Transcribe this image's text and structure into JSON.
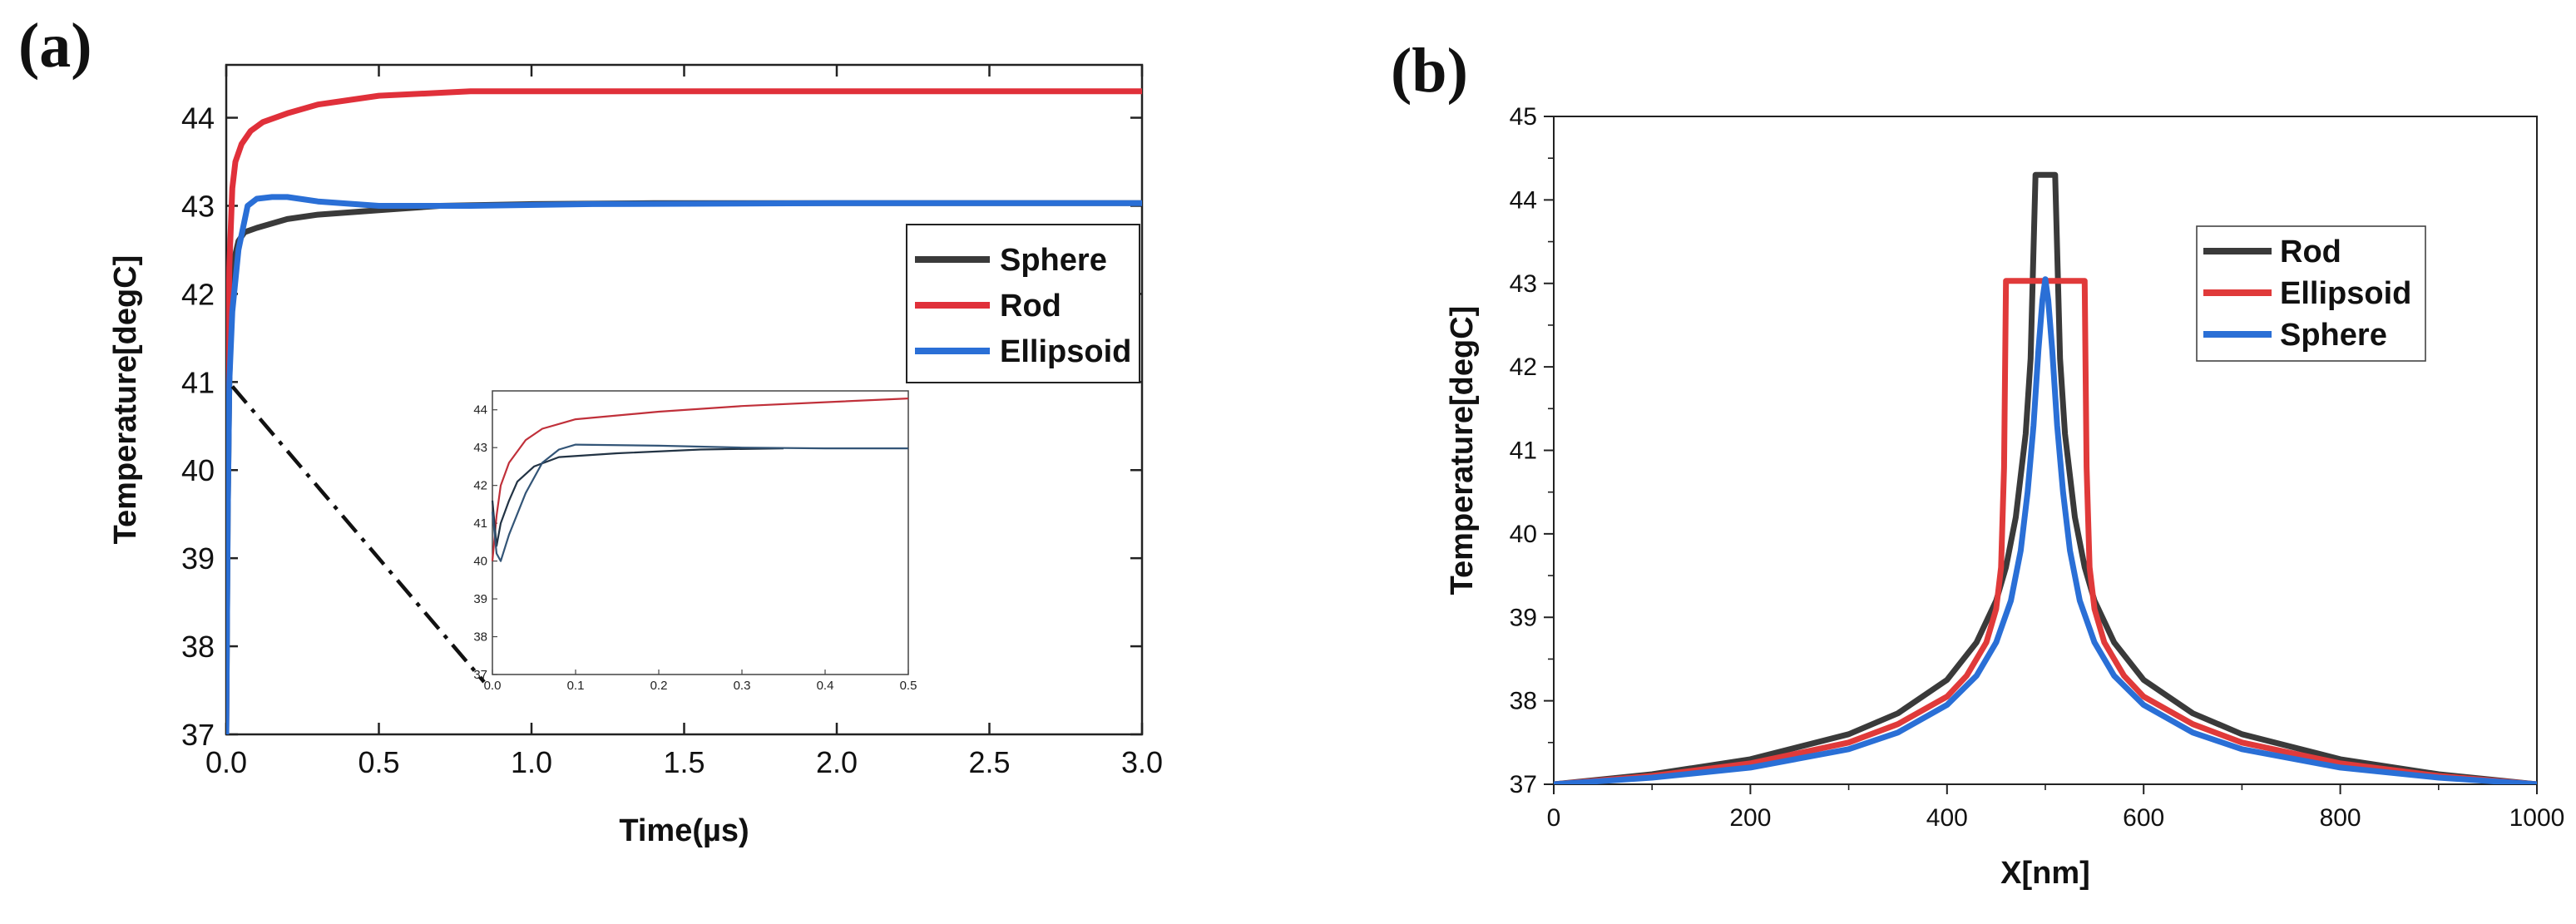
{
  "chart_data": [
    {
      "panel_label": "(a)",
      "type": "line",
      "xlabel": "Time(µs)",
      "ylabel": "Temperature[degC]",
      "xlim": [
        0,
        3
      ],
      "ylim": [
        37,
        44.6
      ],
      "x_ticks": [
        "0.0",
        "0.5",
        "1.0",
        "1.5",
        "2.0",
        "2.5",
        "3.0"
      ],
      "y_ticks": [
        "37",
        "38",
        "39",
        "40",
        "41",
        "42",
        "43",
        "44"
      ],
      "legend": [
        "Sphere",
        "Rod",
        "Ellipsoid"
      ],
      "legend_position": "middle-right",
      "series": [
        {
          "name": "Sphere",
          "color": "#3a3a3a",
          "x": [
            0,
            0.005,
            0.01,
            0.02,
            0.04,
            0.06,
            0.1,
            0.2,
            0.3,
            0.5,
            0.7,
            1.0,
            1.4,
            2.0,
            3.0
          ],
          "y": [
            37,
            39.5,
            41.0,
            42.3,
            42.6,
            42.7,
            42.75,
            42.85,
            42.9,
            42.95,
            43.0,
            43.02,
            43.03,
            43.03,
            43.03
          ]
        },
        {
          "name": "Rod",
          "color": "#e0303a",
          "x": [
            0,
            0.005,
            0.01,
            0.02,
            0.03,
            0.05,
            0.08,
            0.12,
            0.2,
            0.3,
            0.5,
            0.8,
            1.2,
            2.0,
            3.0
          ],
          "y": [
            37,
            41.0,
            42.3,
            43.2,
            43.5,
            43.7,
            43.85,
            43.95,
            44.05,
            44.15,
            44.25,
            44.3,
            44.3,
            44.3,
            44.3
          ]
        },
        {
          "name": "Ellipsoid",
          "color": "#2a6fd6",
          "x": [
            0,
            0.005,
            0.01,
            0.02,
            0.04,
            0.07,
            0.1,
            0.15,
            0.2,
            0.3,
            0.5,
            0.8,
            1.2,
            2.0,
            3.0
          ],
          "y": [
            37,
            39.5,
            41.0,
            41.8,
            42.5,
            43.0,
            43.08,
            43.1,
            43.1,
            43.05,
            43.0,
            43.0,
            43.02,
            43.03,
            43.03
          ]
        }
      ],
      "annotation": "dash-dot line from curve at t=0, T=40.95 to inset corner",
      "inset": {
        "type": "line",
        "xlim": [
          0,
          0.5
        ],
        "ylim": [
          37,
          44.5
        ],
        "x_ticks": [
          "0.0",
          "0.1",
          "0.2",
          "0.3",
          "0.4",
          "0.5"
        ],
        "y_ticks": [
          "37",
          "38",
          "39",
          "40",
          "41",
          "42",
          "43",
          "44"
        ],
        "series": [
          {
            "name": "Rod",
            "color": "#c0303a",
            "x": [
              0,
              0.005,
              0.01,
              0.02,
              0.04,
              0.06,
              0.1,
              0.2,
              0.3,
              0.4,
              0.5
            ],
            "y": [
              40.0,
              41.2,
              42.0,
              42.6,
              43.2,
              43.5,
              43.75,
              43.95,
              44.1,
              44.2,
              44.3
            ]
          },
          {
            "name": "Sphere",
            "color": "#223344",
            "x": [
              0,
              0.005,
              0.01,
              0.02,
              0.03,
              0.05,
              0.08,
              0.15,
              0.25,
              0.35
            ],
            "y": [
              41.6,
              40.4,
              41.0,
              41.6,
              42.1,
              42.5,
              42.75,
              42.85,
              42.95,
              42.98
            ]
          },
          {
            "name": "Ellipsoid",
            "color": "#335577",
            "x": [
              0,
              0.005,
              0.01,
              0.02,
              0.04,
              0.06,
              0.08,
              0.1,
              0.2,
              0.3,
              0.4,
              0.5
            ],
            "y": [
              41.3,
              40.2,
              40.0,
              40.7,
              41.8,
              42.6,
              42.95,
              43.08,
              43.05,
              43.0,
              42.98,
              42.98
            ]
          }
        ]
      }
    },
    {
      "panel_label": "(b)",
      "type": "line",
      "xlabel": "X[nm]",
      "ylabel": "Temperature[degC]",
      "xlim": [
        0,
        1000
      ],
      "ylim": [
        37,
        45
      ],
      "x_ticks": [
        "0",
        "200",
        "400",
        "600",
        "800",
        "1000"
      ],
      "y_ticks": [
        "37",
        "38",
        "39",
        "40",
        "41",
        "42",
        "43",
        "44",
        "45"
      ],
      "legend": [
        "Rod",
        "Ellipsoid",
        "Sphere"
      ],
      "legend_position": "upper-right",
      "series": [
        {
          "name": "Rod",
          "color": "#3a3a3a",
          "x": [
            0,
            100,
            200,
            300,
            350,
            400,
            430,
            450,
            460,
            470,
            480,
            485,
            490,
            510,
            515,
            520,
            530,
            540,
            550,
            570,
            600,
            650,
            700,
            800,
            900,
            1000
          ],
          "y": [
            37.0,
            37.12,
            37.3,
            37.6,
            37.85,
            38.25,
            38.7,
            39.2,
            39.6,
            40.2,
            41.2,
            42.1,
            44.3,
            44.3,
            42.1,
            41.2,
            40.2,
            39.6,
            39.2,
            38.7,
            38.25,
            37.85,
            37.6,
            37.3,
            37.12,
            37.0
          ]
        },
        {
          "name": "Ellipsoid",
          "color": "#e03a3a",
          "x": [
            0,
            100,
            200,
            300,
            350,
            400,
            420,
            440,
            450,
            455,
            458,
            460,
            540,
            542,
            545,
            550,
            560,
            580,
            600,
            650,
            700,
            800,
            900,
            1000
          ],
          "y": [
            37.0,
            37.1,
            37.25,
            37.5,
            37.72,
            38.05,
            38.3,
            38.7,
            39.1,
            39.6,
            40.8,
            43.03,
            43.03,
            40.8,
            39.6,
            39.1,
            38.7,
            38.3,
            38.05,
            37.72,
            37.5,
            37.25,
            37.1,
            37.0
          ]
        },
        {
          "name": "Sphere",
          "color": "#2a6fd6",
          "x": [
            0,
            100,
            200,
            300,
            350,
            400,
            430,
            450,
            465,
            475,
            482,
            488,
            493,
            497,
            500,
            503,
            507,
            512,
            518,
            525,
            535,
            550,
            570,
            600,
            650,
            700,
            800,
            900,
            1000
          ],
          "y": [
            37.0,
            37.08,
            37.2,
            37.42,
            37.62,
            37.95,
            38.3,
            38.7,
            39.2,
            39.8,
            40.5,
            41.3,
            42.2,
            42.8,
            43.05,
            42.8,
            42.2,
            41.3,
            40.5,
            39.8,
            39.2,
            38.7,
            38.3,
            37.95,
            37.62,
            37.42,
            37.2,
            37.08,
            37.0
          ]
        }
      ]
    }
  ]
}
